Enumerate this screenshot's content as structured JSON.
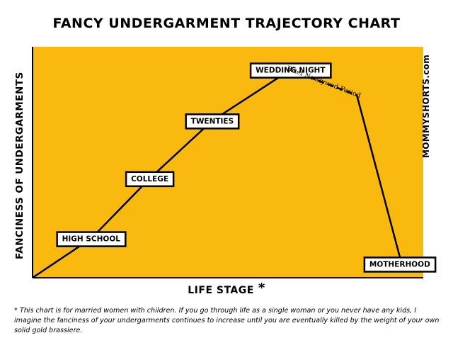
{
  "chart_data": {
    "type": "line",
    "title": "FANCY UNDERGARMENT TRAJECTORY CHART",
    "xlabel": "LIFE STAGE",
    "xlabel_marker": "*",
    "ylabel": "FANCINESS OF UNDERGARMENTS",
    "background_color": "#F9B90F",
    "line_color": "#000000",
    "grid": false,
    "xlim": [
      0,
      10
    ],
    "ylim": [
      0,
      10
    ],
    "series": [
      {
        "points": [
          {
            "x": 0,
            "y": 0
          },
          {
            "x": 1.5,
            "y": 1.7
          },
          {
            "x": 3.0,
            "y": 4.3
          },
          {
            "x": 4.6,
            "y": 6.8
          },
          {
            "x": 6.6,
            "y": 9.0
          }
        ],
        "style": "solid"
      },
      {
        "points": [
          {
            "x": 6.6,
            "y": 9.0
          },
          {
            "x": 8.3,
            "y": 7.9
          }
        ],
        "style": "dashed"
      },
      {
        "points": [
          {
            "x": 8.3,
            "y": 7.9
          },
          {
            "x": 9.4,
            "y": 0.9
          }
        ],
        "style": "solid"
      }
    ],
    "annotations": [
      {
        "label": "HIGH SCHOOL",
        "x": 1.5,
        "y": 1.7,
        "boxed": true
      },
      {
        "label": "COLLEGE",
        "x": 3.0,
        "y": 4.3,
        "boxed": true
      },
      {
        "label": "TWENTIES",
        "x": 4.6,
        "y": 6.8,
        "boxed": true
      },
      {
        "label": "WEDDING NIGHT",
        "x": 6.6,
        "y": 9.0,
        "boxed": true
      },
      {
        "label": "MOTHERHOOD",
        "x": 9.4,
        "y": 0.6,
        "boxed": true
      },
      {
        "label": "Brief Newlywed Period",
        "x": 7.45,
        "y": 8.45,
        "boxed": false
      }
    ]
  },
  "watermark": "MOMMYSHORTS.com",
  "footnote": "* This chart is for married women with children.  If you go through life as a single woman or you never have any kids, I imagine the fanciness of your undergarments continues to increase until you are eventually killed by the weight of your own solid gold brassiere."
}
